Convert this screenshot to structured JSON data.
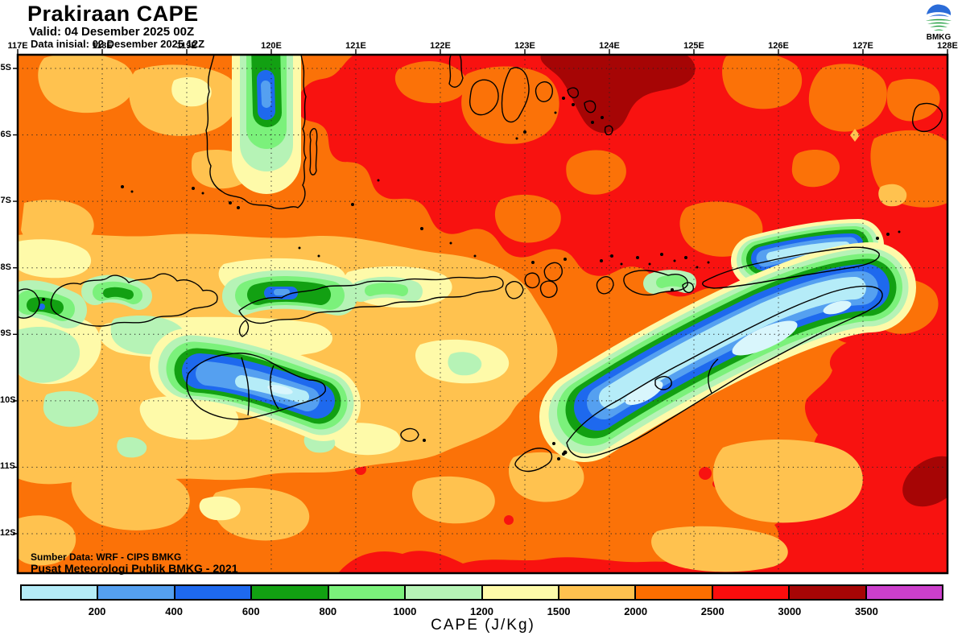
{
  "header": {
    "title": "Prakiraan CAPE",
    "valid_line": "Valid: 04 Desember 2025 00Z",
    "init_line": "Data inisial: 02 Desember 2025 12Z",
    "logo_text": "BMKG"
  },
  "map": {
    "lon_ticks": [
      "117E",
      "118E",
      "119E",
      "120E",
      "121E",
      "122E",
      "123E",
      "124E",
      "125E",
      "126E",
      "127E",
      "128E"
    ],
    "lat_ticks": [
      "5S",
      "6S",
      "7S",
      "8S",
      "9S",
      "10S",
      "11S",
      "12S"
    ],
    "source_line1": "Sumber Data: WRF - CIPS BMKG",
    "source_line2": "Pusat Meteorologi Publik BMKG - 2021"
  },
  "colorbar": {
    "title": "CAPE (J/Kg)",
    "tick_labels": [
      "200",
      "400",
      "600",
      "800",
      "1000",
      "1200",
      "1500",
      "2000",
      "2500",
      "3000",
      "3500"
    ],
    "segment_colors": [
      "#B5ECF8",
      "#55A0F0",
      "#1E69EE",
      "#12A012",
      "#7BF17B",
      "#B6F3B6",
      "#FEFAA9",
      "#FFC24F",
      "#FC6E00",
      "#FB0D0D",
      "#A60505",
      "#CC3FCC"
    ]
  },
  "palette_semantics": {
    "low_cape_cyan": "#B5ECF8",
    "mid_cape_yellow": "#FEFAA9",
    "high_cape_red": "#FB0D0D",
    "extreme_cape_magenta": "#CC3FCC"
  }
}
